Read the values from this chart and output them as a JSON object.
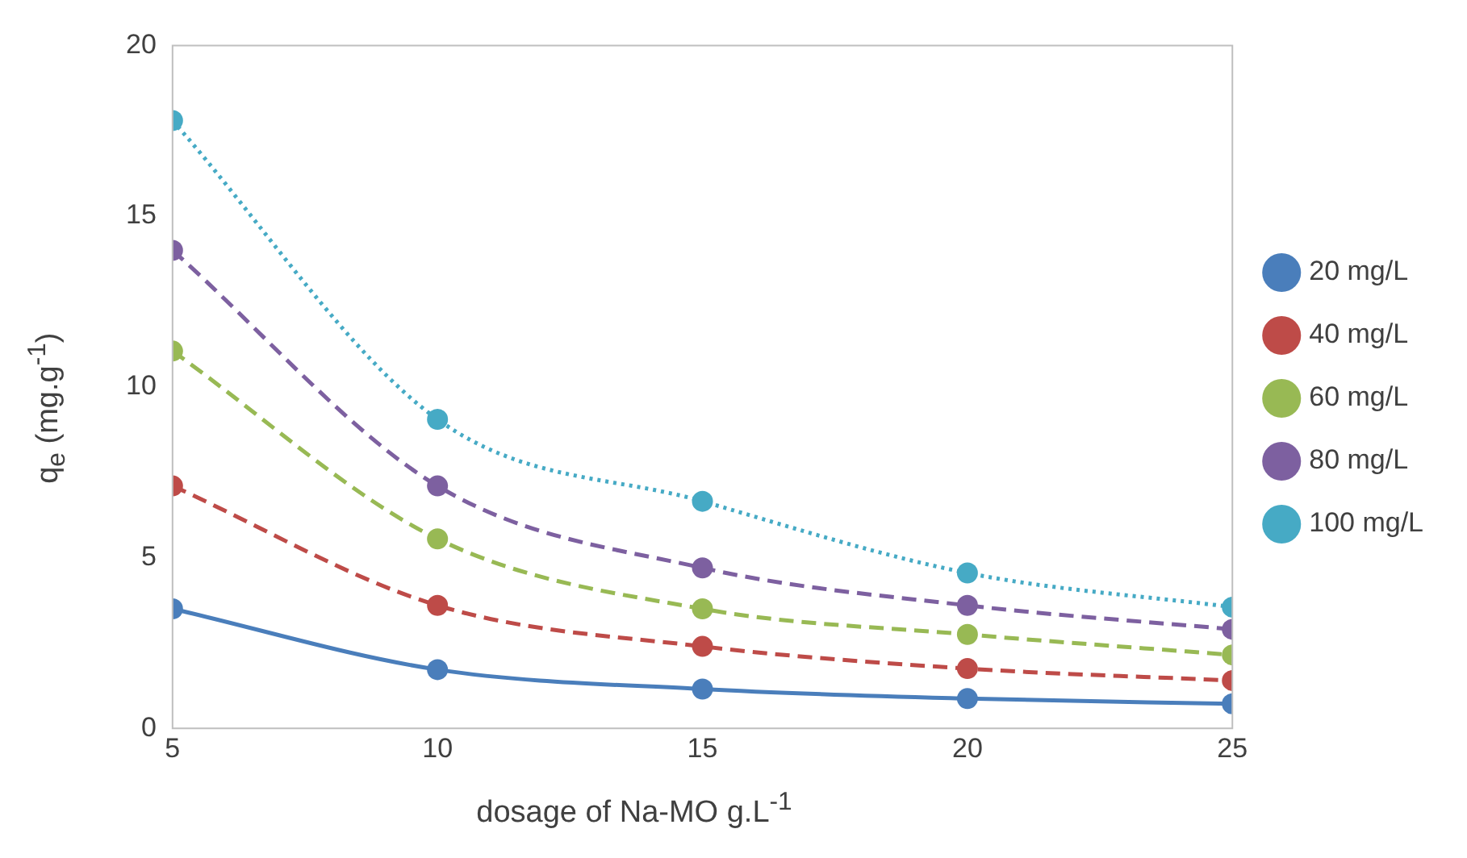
{
  "chart_data": {
    "type": "line",
    "xlabel": "dosage of Na-MO g.L$^{-1}$",
    "ylabel": "q$_{e}$ (mg.g$^{-1}$)",
    "x": [
      5,
      10,
      15,
      20,
      25
    ],
    "xlim": [
      5,
      25
    ],
    "xticks": [
      5,
      10,
      15,
      20,
      25
    ],
    "ylim": [
      0,
      20
    ],
    "yticks": [
      0,
      5,
      10,
      15,
      20
    ],
    "grid": false,
    "legend": "right",
    "marker": "circle",
    "series": [
      {
        "name": "20 mg/L",
        "color": "#4a7ebb",
        "line_style": "solid",
        "values": [
          3.5,
          1.72,
          1.15,
          0.87,
          0.72
        ]
      },
      {
        "name": "40 mg/L",
        "color": "#be4b48",
        "line_style": "dashed",
        "values": [
          7.1,
          3.6,
          2.4,
          1.75,
          1.4
        ]
      },
      {
        "name": "60 mg/L",
        "color": "#98b954",
        "line_style": "dashed",
        "values": [
          11.05,
          5.55,
          3.5,
          2.75,
          2.15
        ]
      },
      {
        "name": "80 mg/L",
        "color": "#7d60a0",
        "line_style": "dashed",
        "values": [
          14.0,
          7.1,
          4.7,
          3.6,
          2.9
        ]
      },
      {
        "name": "100 mg/L",
        "color": "#46aac5",
        "line_style": "dotted",
        "values": [
          17.8,
          9.05,
          6.65,
          4.55,
          3.55
        ]
      }
    ]
  }
}
